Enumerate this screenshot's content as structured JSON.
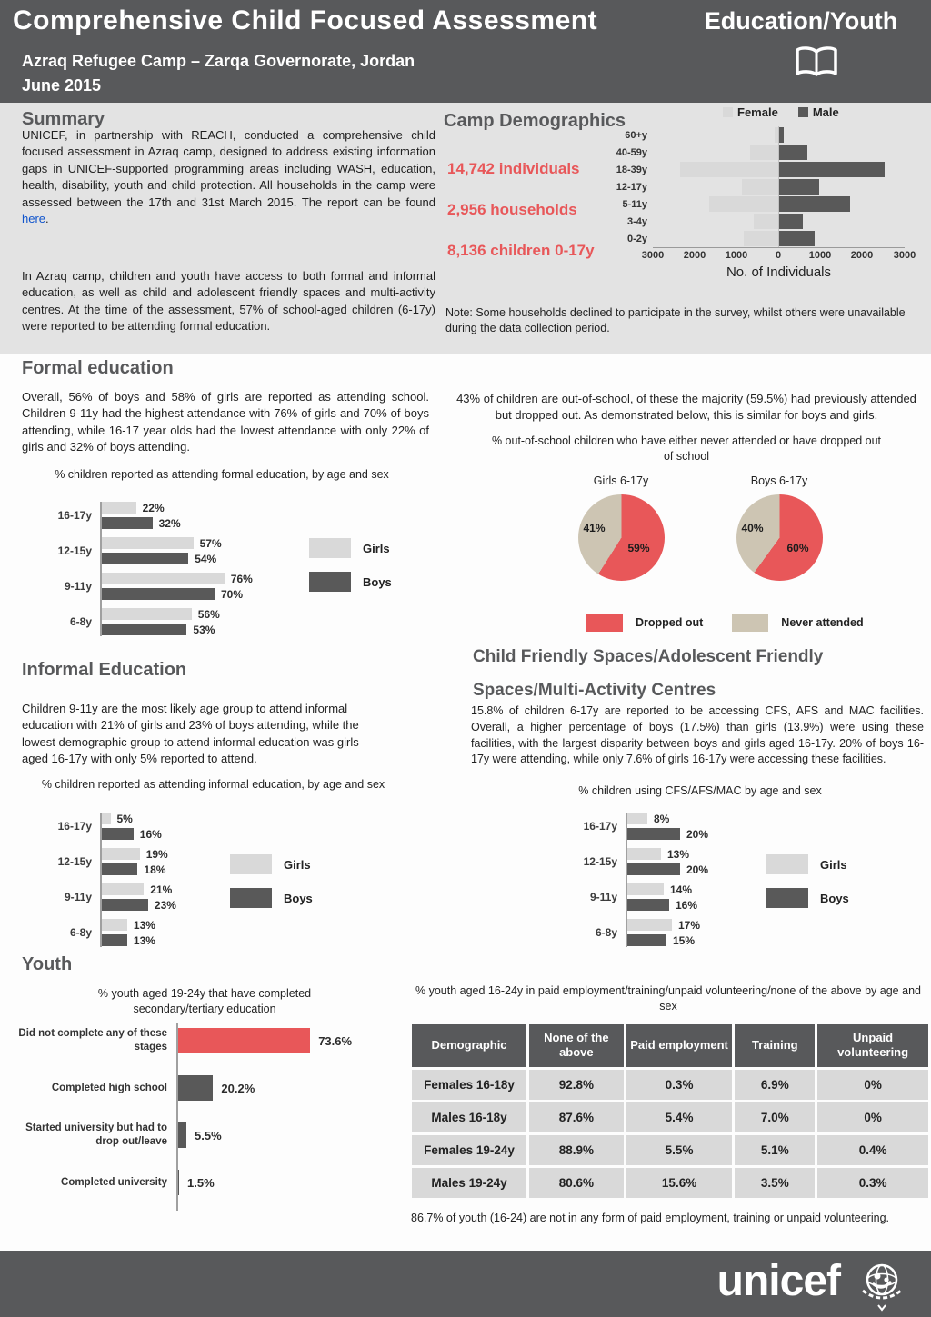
{
  "colors": {
    "header_bg": "#58595b",
    "accent_red": "#e85759",
    "bar_light": "#d9d9d9",
    "bar_dark": "#595959",
    "tan": "#cdc5b3",
    "band_bg": "#e3e3e3",
    "link_blue": "#1155cc"
  },
  "header": {
    "title": "Comprehensive Child Focused Assessment",
    "subtitle": "Azraq Refugee Camp – Zarqa Governorate, Jordan",
    "date": "June 2015",
    "sector": "Education/Youth"
  },
  "summary": {
    "heading": "Summary",
    "para1": "UNICEF, in partnership with REACH, conducted a comprehensive child focused assessment in Azraq camp, designed to address existing information gaps in UNICEF-supported programming areas including WASH, education, health, disability, youth and child protection. All households in the camp were assessed between the 17th and 31st March 2015. The report can be found ",
    "link_text": "here",
    "para1_end": ".",
    "para2": "In Azraq camp, children and youth have access to both formal and informal education, as well as child and adolescent friendly spaces and multi-activity centres. At the time of the assessment, 57% of school-aged children (6-17y) were reported to be attending formal education."
  },
  "demographics": {
    "heading": "Camp Demographics",
    "stats": [
      "14,742 individuals",
      "2,956 households",
      "8,136 children 0-17y"
    ],
    "note": "Note: Some households declined to participate in the survey, whilst others were unavailable during the data collection period."
  },
  "formal": {
    "heading": "Formal education",
    "body": "Overall, 56% of boys and 58% of girls are reported as attending school. Children 9-11y had the highest attendance with 76% of girls and 70% of boys attending, while 16-17 year olds had the lowest attendance with only 22% of girls and 32% of boys attending.",
    "chart_title": "% children reported as attending formal education, by age and sex"
  },
  "out_of_school": {
    "body": "43% of children are out-of-school, of these the majority (59.5%) had previously attended but dropped out. As demonstrated below, this is similar for boys and girls.",
    "chart_title": "% out-of-school children who have either never attended or have dropped out of school"
  },
  "informal": {
    "heading": "Informal Education",
    "body": "Children 9-11y are the most likely age group to attend informal education with 21% of girls and 23% of boys attending, while the lowest demographic group to attend informal education was girls aged 16-17y with only 5% reported to attend.",
    "chart_title": "% children reported as attending informal education, by age and sex"
  },
  "cfs": {
    "heading_line1": "Child Friendly Spaces/Adolescent Friendly",
    "heading_line2": "Spaces/Multi-Activity Centres",
    "body": "15.8% of children 6-17y are reported to be accessing CFS, AFS and MAC facilities. Overall, a higher percentage of boys (17.5%) than girls (13.9%) were using these facilities, with the largest disparity between boys and girls aged 16-17y. 20% of boys 16-17y were attending, while only 7.6% of girls 16-17y were accessing these facilities.",
    "chart_title": "% children using CFS/AFS/MAC by age and sex"
  },
  "youth": {
    "heading": "Youth",
    "chart_title": "% youth aged 19-24y that have completed secondary/tertiary education",
    "table_title": "% youth aged 16-24y in paid employment/training/unpaid volunteering/none of the above by age and sex",
    "table_note": "86.7% of youth (16-24) are not in any form of paid employment, training or unpaid volunteering."
  },
  "footer": {
    "logo_text": "unicef"
  },
  "chart_data": [
    {
      "id": "camp_demographics_pyramid",
      "type": "bar",
      "orientation": "population-pyramid",
      "categories": [
        "60+y",
        "40-59y",
        "18-39y",
        "12-17y",
        "5-11y",
        "3-4y",
        "0-2y"
      ],
      "series": [
        {
          "name": "Female",
          "values": [
            100,
            700,
            2400,
            900,
            1700,
            600,
            850
          ]
        },
        {
          "name": "Male",
          "values": [
            130,
            700,
            2600,
            1000,
            1750,
            600,
            880
          ]
        }
      ],
      "xlabel": "No. of Individuals",
      "xticks": [
        "3000",
        "2000",
        "1000",
        "0",
        "1000",
        "2000",
        "3000"
      ],
      "xlim": [
        -3000,
        3000
      ],
      "legend_position": "top"
    },
    {
      "id": "formal_education_attendance",
      "type": "bar",
      "title": "% children reported as attending formal education, by age and sex",
      "categories": [
        "16-17y",
        "12-15y",
        "9-11y",
        "6-8y"
      ],
      "series": [
        {
          "name": "Girls",
          "values": [
            22,
            57,
            76,
            56
          ],
          "labels": [
            "22%",
            "57%",
            "76%",
            "56%"
          ]
        },
        {
          "name": "Boys",
          "values": [
            32,
            54,
            70,
            53
          ],
          "labels": [
            "32%",
            "54%",
            "70%",
            "53%"
          ]
        }
      ],
      "xlim": [
        0,
        100
      ]
    },
    {
      "id": "out_of_school_pies",
      "type": "pie",
      "title": "% out-of-school children who have either never attended or have dropped out of school",
      "pies": [
        {
          "label": "Girls 6-17y",
          "slices": [
            {
              "name": "Dropped out",
              "value": 59,
              "label": "59%"
            },
            {
              "name": "Never attended",
              "value": 41,
              "label": "41%"
            }
          ]
        },
        {
          "label": "Boys 6-17y",
          "slices": [
            {
              "name": "Dropped out",
              "value": 60,
              "label": "60%"
            },
            {
              "name": "Never attended",
              "value": 40,
              "label": "40%"
            }
          ]
        }
      ],
      "legend": [
        "Dropped out",
        "Never attended"
      ]
    },
    {
      "id": "informal_education_attendance",
      "type": "bar",
      "title": "% children reported as attending informal education, by age and sex",
      "categories": [
        "16-17y",
        "12-15y",
        "9-11y",
        "6-8y"
      ],
      "series": [
        {
          "name": "Girls",
          "values": [
            5,
            19,
            21,
            13
          ],
          "labels": [
            "5%",
            "19%",
            "21%",
            "13%"
          ]
        },
        {
          "name": "Boys",
          "values": [
            16,
            18,
            23,
            13
          ],
          "labels": [
            "16%",
            "18%",
            "23%",
            "13%"
          ]
        }
      ],
      "xlim": [
        0,
        100
      ]
    },
    {
      "id": "cfs_afs_mac_usage",
      "type": "bar",
      "title": "% children using CFS/AFS/MAC by age and sex",
      "categories": [
        "16-17y",
        "12-15y",
        "9-11y",
        "6-8y"
      ],
      "series": [
        {
          "name": "Girls",
          "values": [
            8,
            13,
            14,
            17
          ],
          "labels": [
            "8%",
            "13%",
            "14%",
            "17%"
          ]
        },
        {
          "name": "Boys",
          "values": [
            20,
            20,
            16,
            15
          ],
          "labels": [
            "20%",
            "20%",
            "16%",
            "15%"
          ]
        }
      ],
      "xlim": [
        0,
        100
      ]
    },
    {
      "id": "youth_secondary_tertiary_completion",
      "type": "bar",
      "title": "% youth aged 19-24y that have completed secondary/tertiary education",
      "categories": [
        "Did not complete any of these stages",
        "Completed high school",
        "Started university but had to drop out/leave",
        "Completed university"
      ],
      "values": [
        73.6,
        20.2,
        5.5,
        1.5
      ],
      "labels": [
        "73.6%",
        "20.2%",
        "5.5%",
        "1.5%"
      ],
      "xlim": [
        0,
        100
      ]
    },
    {
      "id": "youth_employment_table",
      "type": "table",
      "title": "% youth aged 16-24y in paid employment/training/unpaid volunteering/none of the above by age and sex",
      "columns": [
        "Demographic",
        "None of the above",
        "Paid employment",
        "Training",
        "Unpaid volunteering"
      ],
      "rows": [
        [
          "Females 16-18y",
          "92.8%",
          "0.3%",
          "6.9%",
          "0%"
        ],
        [
          "Males 16-18y",
          "87.6%",
          "5.4%",
          "7.0%",
          "0%"
        ],
        [
          "Females 19-24y",
          "88.9%",
          "5.5%",
          "5.1%",
          "0.4%"
        ],
        [
          "Males 19-24y",
          "80.6%",
          "15.6%",
          "3.5%",
          "0.3%"
        ]
      ]
    }
  ]
}
